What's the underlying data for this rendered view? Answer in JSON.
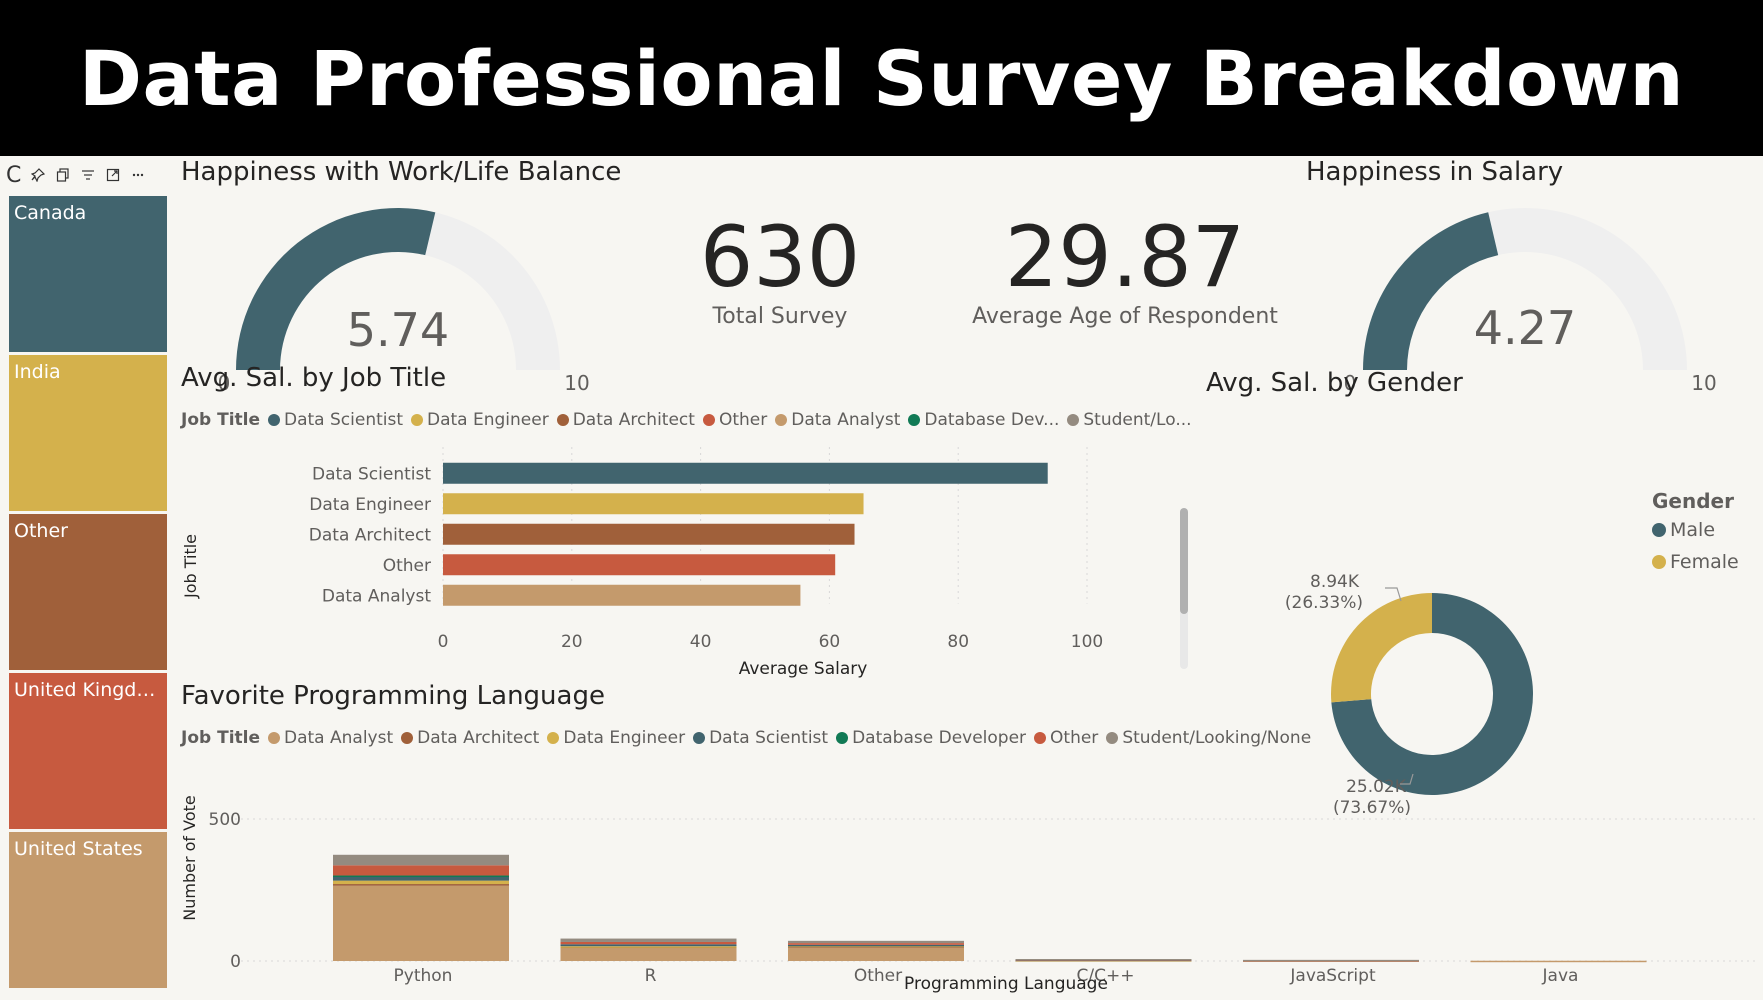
{
  "header": {
    "title": "Data Professional Survey Breakdown"
  },
  "treemap": {
    "header_text": "C",
    "cells": [
      {
        "label": "Canada",
        "color": "#41646e"
      },
      {
        "label": "India",
        "color": "#d4b14c"
      },
      {
        "label": "Other",
        "color": "#a0603a"
      },
      {
        "label": "United Kingdo...",
        "color": "#c75a3f"
      },
      {
        "label": "United States",
        "color": "#c49a6c"
      }
    ]
  },
  "gauge_worklife": {
    "title": "Happiness with Work/Life Balance",
    "value": 5.74,
    "value_label": "5.74",
    "min_label": "0",
    "max_label": "10",
    "min": 0,
    "max": 10,
    "color": "#41646e",
    "track_color": "#efefef"
  },
  "kpis": [
    {
      "value": "630",
      "label": "Total Survey"
    },
    {
      "value": "29.87",
      "label": "Average Age of Respondent"
    }
  ],
  "gauge_salary": {
    "title": "Happiness in Salary",
    "value": 4.27,
    "value_label": "4.27",
    "min_label": "0",
    "max_label": "10",
    "min": 0,
    "max": 10,
    "color": "#41646e",
    "track_color": "#efefef"
  },
  "bar_by_job": {
    "title": "Avg. Sal. by Job Title",
    "legend_title": "Job Title",
    "legend": [
      {
        "name": "Data Scientist",
        "color": "#41646e"
      },
      {
        "name": "Data Engineer",
        "color": "#d4b14c"
      },
      {
        "name": "Data Architect",
        "color": "#a0603a"
      },
      {
        "name": "Other",
        "color": "#c75a3f"
      },
      {
        "name": "Data Analyst",
        "color": "#c49a6c"
      },
      {
        "name": "Database Dev...",
        "color": "#117a55"
      },
      {
        "name": "Student/Lo...",
        "color": "#948b80"
      }
    ],
    "xlabel": "Average Salary",
    "ylabel": "Job Title",
    "ticks": [
      "0",
      "20",
      "40",
      "60",
      "80",
      "100"
    ]
  },
  "donut_gender": {
    "title": "Avg. Sal. by Gender",
    "legend_title": "Gender",
    "male_label": "Male",
    "female_label": "Female",
    "female_value_label": "8.94K",
    "female_pct_label": "(26.33%)",
    "male_value_label": "25.02K",
    "male_pct_label": "(73.67%)",
    "male_color": "#41646e",
    "female_color": "#d4b14c"
  },
  "stacked_lang": {
    "title": "Favorite Programming Language",
    "legend_title": "Job Title",
    "legend": [
      {
        "name": "Data Analyst",
        "color": "#c49a6c"
      },
      {
        "name": "Data Architect",
        "color": "#a0603a"
      },
      {
        "name": "Data Engineer",
        "color": "#d4b14c"
      },
      {
        "name": "Data Scientist",
        "color": "#41646e"
      },
      {
        "name": "Database Developer",
        "color": "#117a55"
      },
      {
        "name": "Other",
        "color": "#c75a3f"
      },
      {
        "name": "Student/Looking/None",
        "color": "#948b80"
      }
    ],
    "xlabel": "Programming Language",
    "ylabel": "Number of Vote",
    "yticks": [
      "0",
      "500"
    ]
  },
  "chart_data": [
    {
      "type": "bar",
      "orientation": "horizontal",
      "title": "Avg. Sal. by Job Title",
      "categories": [
        "Data Scientist",
        "Data Engineer",
        "Data Architect",
        "Other",
        "Data Analyst"
      ],
      "values": [
        93.9,
        65.3,
        63.9,
        60.9,
        55.5
      ],
      "colors": [
        "#41646e",
        "#d4b14c",
        "#a0603a",
        "#c75a3f",
        "#c49a6c"
      ],
      "xlabel": "Average Salary",
      "ylabel": "Job Title",
      "xlim": [
        0,
        100
      ]
    },
    {
      "type": "pie",
      "donut": true,
      "title": "Avg. Sal. by Gender",
      "categories": [
        "Male",
        "Female"
      ],
      "values": [
        25020,
        8940
      ],
      "percents": [
        73.67,
        26.33
      ]
    },
    {
      "type": "bar",
      "stacked": true,
      "title": "Favorite Programming Language",
      "categories": [
        "Python",
        "R",
        "Other",
        "C/C++",
        "JavaScript",
        "Java"
      ],
      "series": [
        {
          "name": "Data Analyst",
          "values": [
            265,
            50,
            52,
            3,
            2,
            1
          ]
        },
        {
          "name": "Data Architect",
          "values": [
            6,
            1,
            1,
            0,
            0,
            0
          ]
        },
        {
          "name": "Data Engineer",
          "values": [
            12,
            1,
            2,
            1,
            0,
            0
          ]
        },
        {
          "name": "Data Scientist",
          "values": [
            14,
            7,
            2,
            1,
            0,
            0
          ]
        },
        {
          "name": "Database Developer",
          "values": [
            4,
            0,
            0,
            0,
            0,
            0
          ]
        },
        {
          "name": "Other",
          "values": [
            36,
            8,
            6,
            1,
            1,
            0
          ]
        },
        {
          "name": "Student/Looking/None",
          "values": [
            37,
            12,
            8,
            1,
            1,
            0
          ]
        }
      ],
      "xlabel": "Programming Language",
      "ylabel": "Number of Vote",
      "ylim": [
        0,
        500
      ]
    },
    {
      "type": "gauge",
      "title": "Happiness with Work/Life Balance",
      "value": 5.74,
      "min": 0,
      "max": 10
    },
    {
      "type": "gauge",
      "title": "Happiness in Salary",
      "value": 4.27,
      "min": 0,
      "max": 10
    }
  ]
}
